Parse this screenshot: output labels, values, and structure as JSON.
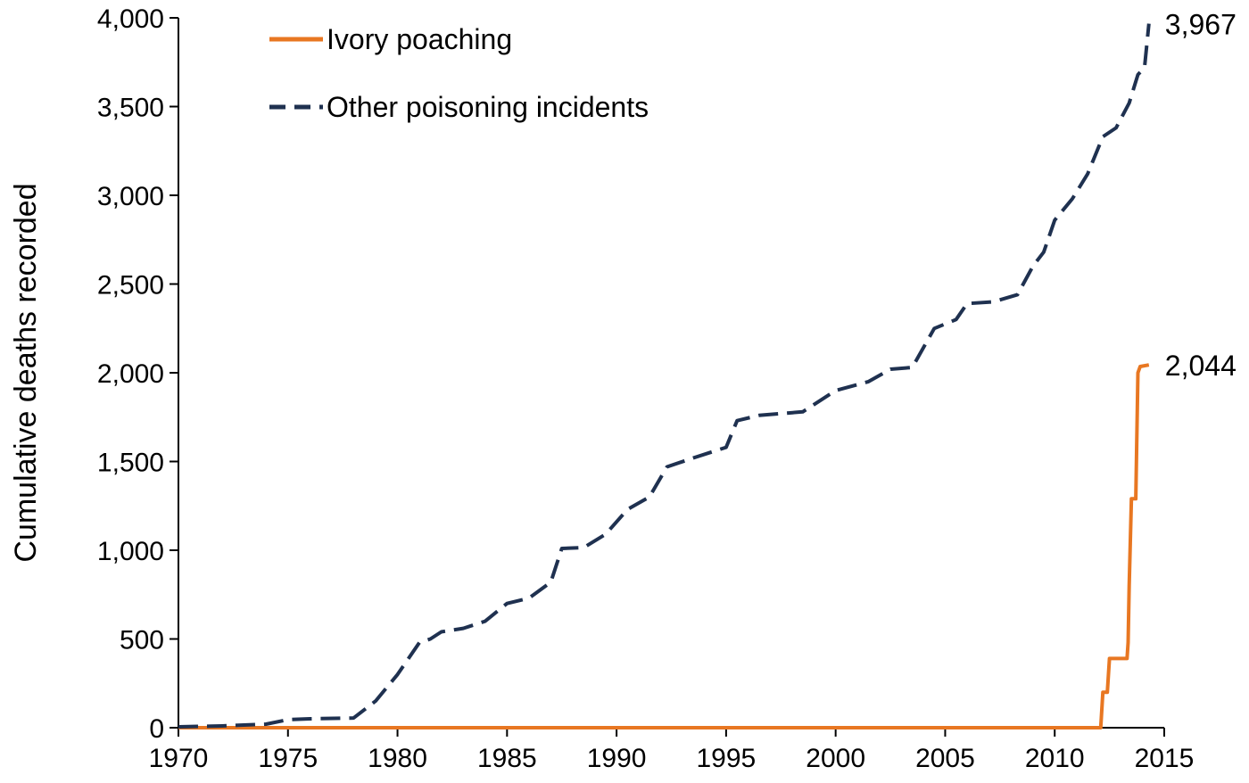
{
  "chart_data": {
    "type": "line",
    "title": "",
    "xlabel": "",
    "ylabel": "Cumulative deaths recorded",
    "xlim": [
      1970,
      2015
    ],
    "ylim": [
      0,
      4000
    ],
    "x_ticks": [
      "1970",
      "1975",
      "1980",
      "1985",
      "1990",
      "1995",
      "2000",
      "2005",
      "2010",
      "2015"
    ],
    "y_ticks": [
      "0",
      "500",
      "1,000",
      "1,500",
      "2,000",
      "2,500",
      "3,000",
      "3,500",
      "4,000"
    ],
    "grid": false,
    "legend_position": "top-left",
    "series": [
      {
        "name": "Ivory poaching",
        "color": "#E87722",
        "style": "solid",
        "end_label": "2,044",
        "points": [
          [
            1970,
            0
          ],
          [
            2012.1,
            0
          ],
          [
            2012.2,
            200
          ],
          [
            2012.4,
            200
          ],
          [
            2012.5,
            390
          ],
          [
            2013.3,
            390
          ],
          [
            2013.35,
            480
          ],
          [
            2013.4,
            800
          ],
          [
            2013.5,
            1290
          ],
          [
            2013.7,
            1290
          ],
          [
            2013.8,
            2000
          ],
          [
            2013.9,
            2035
          ],
          [
            2014.3,
            2044
          ]
        ]
      },
      {
        "name": "Other poisoning incidents",
        "color": "#1F3150",
        "style": "dashed",
        "end_label": "3,967",
        "points": [
          [
            1970,
            5
          ],
          [
            1972,
            10
          ],
          [
            1974,
            20
          ],
          [
            1975,
            45
          ],
          [
            1976,
            50
          ],
          [
            1978,
            55
          ],
          [
            1979,
            150
          ],
          [
            1980,
            300
          ],
          [
            1981,
            480
          ],
          [
            1981.5,
            500
          ],
          [
            1982,
            540
          ],
          [
            1983,
            560
          ],
          [
            1984,
            600
          ],
          [
            1985,
            700
          ],
          [
            1986,
            730
          ],
          [
            1987,
            820
          ],
          [
            1987.5,
            1010
          ],
          [
            1988.5,
            1015
          ],
          [
            1989.5,
            1090
          ],
          [
            1990.5,
            1230
          ],
          [
            1991.5,
            1300
          ],
          [
            1992.3,
            1470
          ],
          [
            1993.5,
            1520
          ],
          [
            1995,
            1580
          ],
          [
            1995.5,
            1730
          ],
          [
            1996.5,
            1760
          ],
          [
            1998.5,
            1780
          ],
          [
            2000,
            1900
          ],
          [
            2001.5,
            1950
          ],
          [
            2002.5,
            2020
          ],
          [
            2003.5,
            2030
          ],
          [
            2004.5,
            2250
          ],
          [
            2005.5,
            2300
          ],
          [
            2006,
            2390
          ],
          [
            2007.2,
            2400
          ],
          [
            2008.3,
            2440
          ],
          [
            2009,
            2600
          ],
          [
            2009.5,
            2680
          ],
          [
            2010,
            2860
          ],
          [
            2010.8,
            2980
          ],
          [
            2011.5,
            3120
          ],
          [
            2012.2,
            3330
          ],
          [
            2012.8,
            3380
          ],
          [
            2013.4,
            3520
          ],
          [
            2013.8,
            3680
          ],
          [
            2014.1,
            3720
          ],
          [
            2014.3,
            3967
          ]
        ]
      }
    ]
  }
}
